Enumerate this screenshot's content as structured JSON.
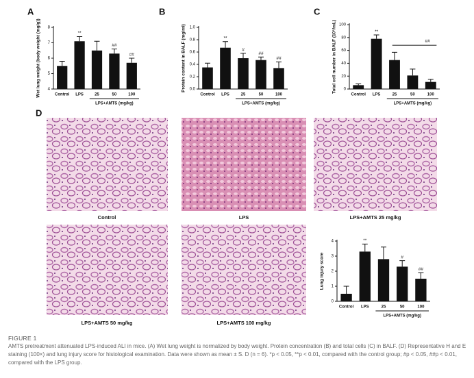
{
  "chart_data": [
    {
      "type": "bar",
      "panel": "A",
      "y_label": "Wet lung weight (body weight (mg/g))",
      "categories": [
        "Control",
        "LPS",
        "25",
        "50",
        "100"
      ],
      "group_label": "LPS+AMTS (mg/kg)",
      "values": [
        5.5,
        7.1,
        6.5,
        6.3,
        5.7
      ],
      "errors": [
        0.3,
        0.3,
        0.6,
        0.3,
        0.3
      ],
      "annotations": [
        null,
        "**",
        null,
        "##",
        "##"
      ],
      "color": "#111111",
      "ylim": [
        4,
        8
      ],
      "yticks": [
        4,
        5,
        6,
        7,
        8
      ]
    },
    {
      "type": "bar",
      "panel": "B",
      "y_label": "Protein content in BALF (mg/ml)",
      "categories": [
        "Control",
        "LPS",
        "25",
        "50",
        "100"
      ],
      "group_label": "LPS+AMTS (mg/kg)",
      "values": [
        0.35,
        0.67,
        0.5,
        0.47,
        0.34
      ],
      "errors": [
        0.07,
        0.1,
        0.08,
        0.05,
        0.1
      ],
      "annotations": [
        null,
        "**",
        "#",
        "##",
        "##"
      ],
      "color": "#111111",
      "ylim": [
        0,
        1
      ],
      "yticks": [
        {
          "value": 0,
          "label": "0.0"
        },
        0.2,
        0.4,
        0.6,
        0.8,
        {
          "value": 1,
          "label": "1.0"
        }
      ]
    },
    {
      "type": "bar",
      "panel": "C",
      "y_label": "Total cell number in BALF (10⁵/mL)",
      "categories": [
        "Control",
        "LPS",
        "25",
        "50",
        "100"
      ],
      "group_label": "LPS+AMTS (mg/kg)",
      "values": [
        6,
        78,
        45,
        21,
        11
      ],
      "errors": [
        2,
        6,
        12,
        10,
        4
      ],
      "annotations": [
        null,
        "**",
        null,
        null,
        null
      ],
      "group_annotation": "##",
      "color": "#111111",
      "ylim": [
        0,
        100
      ],
      "yticks": [
        0,
        20,
        40,
        60,
        80,
        100
      ]
    },
    {
      "type": "bar",
      "y_label": "Lung injury score",
      "categories": [
        "Control",
        "LPS",
        "25",
        "50",
        "100"
      ],
      "group_label": "LPS+AMTS (mg/kg)",
      "values": [
        0.5,
        3.3,
        2.8,
        2.3,
        1.5
      ],
      "errors": [
        0.5,
        0.5,
        0.8,
        0.4,
        0.4
      ],
      "annotations": [
        null,
        "**",
        null,
        "#",
        "##"
      ],
      "color": "#111111",
      "ylim": [
        0,
        4
      ],
      "yticks": [
        0,
        1,
        2,
        3,
        4
      ]
    }
  ],
  "histology": {
    "panel": "D",
    "labels": [
      "Control",
      "LPS",
      "LPS+AMTS 25 mg/kg",
      "LPS+AMTS 50 mg/kg",
      "LPS+AMTS 100 mg/kg"
    ]
  },
  "caption": {
    "title": "FIGURE 1",
    "text": "AMTS pretreatment attenuated LPS-induced ALI in mice. (A) Wet lung weight is normalized by body weight. Protein concentration (B) and total cells (C) in BALF. (D) Representative H and E staining (100×) and lung injury score for histological examination. Data were shown as mean ± S. D (n = 6). *p < 0.05, **p < 0.01, compared with the control group; #p < 0.05, ##p < 0.01, compared with the LPS group."
  }
}
